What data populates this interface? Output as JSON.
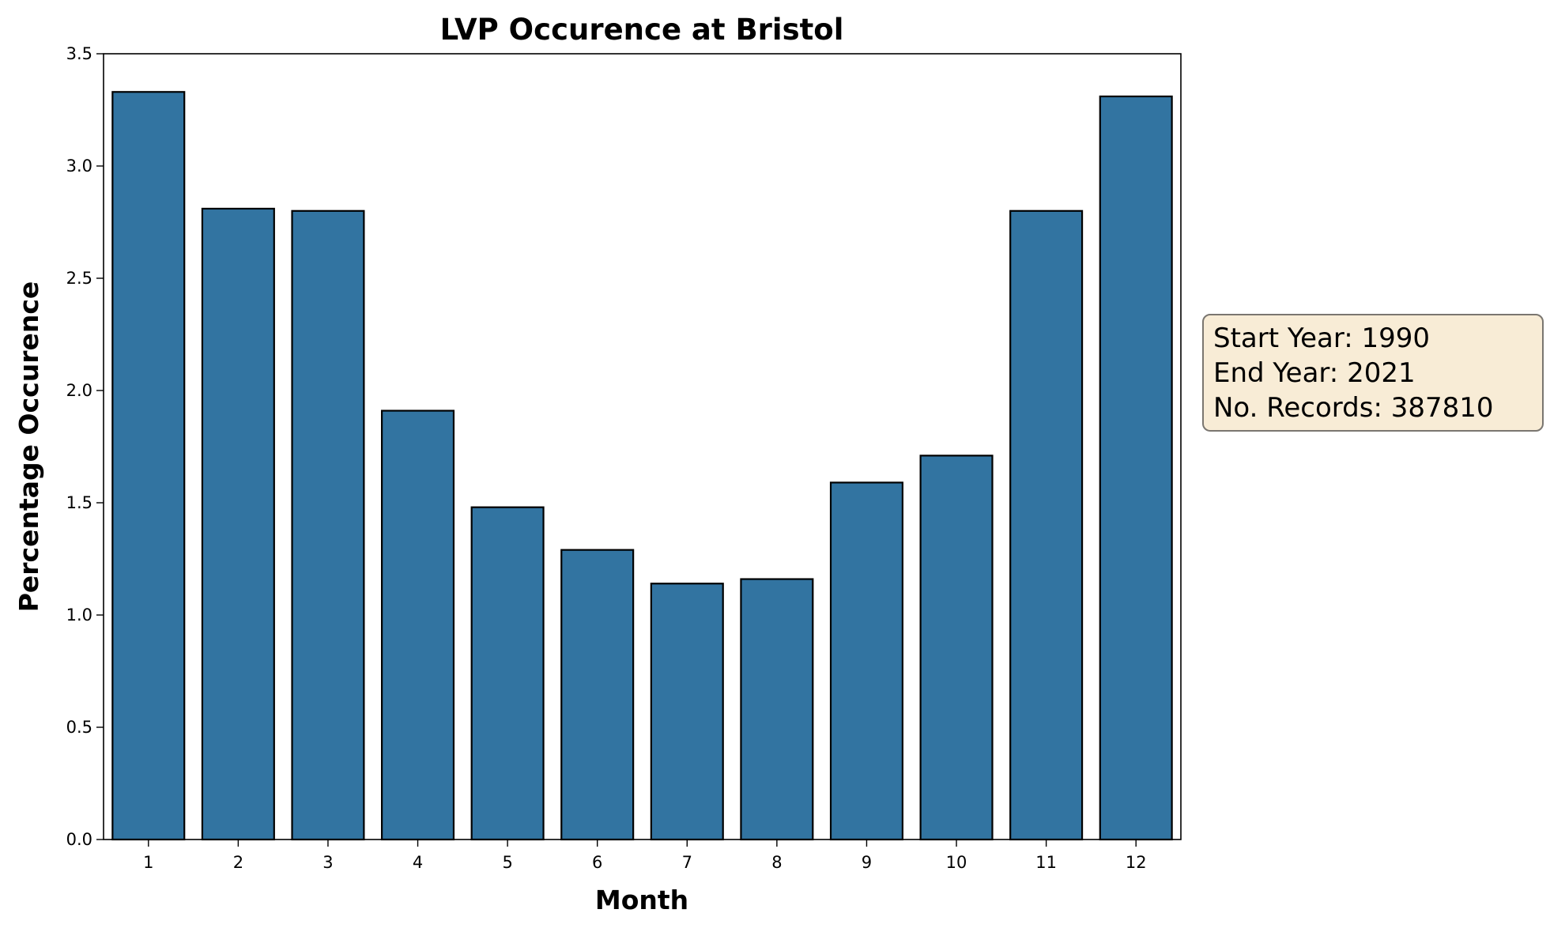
{
  "chart_data": {
    "type": "bar",
    "title": "LVP Occurence at Bristol",
    "xlabel": "Month",
    "ylabel": "Percentage Occurence",
    "categories": [
      "1",
      "2",
      "3",
      "4",
      "5",
      "6",
      "7",
      "8",
      "9",
      "10",
      "11",
      "12"
    ],
    "values": [
      3.33,
      2.81,
      2.8,
      1.91,
      1.48,
      1.29,
      1.14,
      1.16,
      1.59,
      1.71,
      2.8,
      3.31
    ],
    "ylim": [
      0,
      3.5
    ],
    "yticks": [
      "0.0",
      "0.5",
      "1.0",
      "1.5",
      "2.0",
      "2.5",
      "3.0",
      "3.5"
    ],
    "grid": false,
    "bar_color": "#3274a1",
    "annotation": {
      "lines": [
        "Start Year: 1990",
        "End Year: 2021",
        "No. Records: 387810"
      ],
      "background": "#f8ecd6"
    }
  }
}
